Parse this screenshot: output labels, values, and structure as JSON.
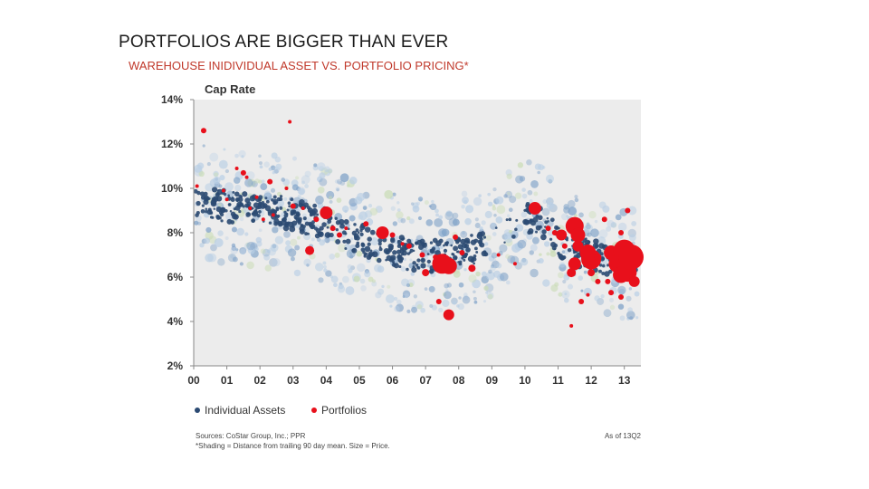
{
  "slide": {
    "title": "PORTFOLIOS ARE BIGGER THAN EVER",
    "subtitle": "WAREHOUSE INIDIVIDUAL ASSET VS. PORTFOLIO PRICING*"
  },
  "chart_data": {
    "type": "scatter",
    "title": "",
    "ylabel": "Cap Rate",
    "xlabel": "",
    "ylim": [
      2,
      14
    ],
    "xlim": [
      2000,
      2013.5
    ],
    "y_ticks": [
      "2%",
      "4%",
      "6%",
      "8%",
      "10%",
      "12%",
      "14%"
    ],
    "x_ticks": [
      "00",
      "01",
      "02",
      "03",
      "04",
      "05",
      "06",
      "07",
      "08",
      "09",
      "10",
      "11",
      "12",
      "13"
    ],
    "grid": false,
    "legend": "bottom-left",
    "colors": {
      "individual_assets": "#2b4a72",
      "portfolios": "#e8101b",
      "plot_background": "#ececec",
      "shading_light": "#b9cfe5",
      "shading_mid": "#7fa2c8",
      "shading_green": "#c9dcb5"
    },
    "series": [
      {
        "name": "Individual Assets",
        "color": "#2b4a72",
        "trend": [
          [
            2000.1,
            9.4
          ],
          [
            2000.5,
            9.3
          ],
          [
            2001.0,
            9.2
          ],
          [
            2001.5,
            9.1
          ],
          [
            2002.0,
            9.0
          ],
          [
            2002.5,
            9.0
          ],
          [
            2003.0,
            8.8
          ],
          [
            2003.5,
            8.6
          ],
          [
            2004.0,
            8.4
          ],
          [
            2004.5,
            8.0
          ],
          [
            2005.0,
            7.7
          ],
          [
            2005.5,
            7.4
          ],
          [
            2006.0,
            7.2
          ],
          [
            2006.5,
            7.0
          ],
          [
            2007.0,
            6.9
          ],
          [
            2007.5,
            7.0
          ],
          [
            2008.0,
            7.1
          ],
          [
            2008.5,
            7.3
          ],
          [
            2009.0,
            7.6
          ],
          [
            2009.5,
            8.3
          ],
          [
            2010.0,
            8.7
          ],
          [
            2010.5,
            8.5
          ],
          [
            2011.0,
            7.6
          ],
          [
            2011.5,
            7.2
          ],
          [
            2012.0,
            7.0
          ],
          [
            2012.5,
            6.8
          ],
          [
            2013.0,
            6.7
          ]
        ]
      },
      {
        "name": "Portfolios",
        "color": "#e8101b",
        "points": [
          [
            2000.3,
            12.6,
            3
          ],
          [
            2000.1,
            10.1,
            2
          ],
          [
            2000.9,
            9.9,
            2
          ],
          [
            2001.0,
            9.5,
            2
          ],
          [
            2001.3,
            10.9,
            2
          ],
          [
            2001.5,
            10.7,
            3
          ],
          [
            2001.6,
            10.5,
            2
          ],
          [
            2001.7,
            9.1,
            2
          ],
          [
            2001.9,
            9.6,
            2
          ],
          [
            2002.1,
            8.6,
            2
          ],
          [
            2002.3,
            10.3,
            3
          ],
          [
            2002.4,
            8.8,
            2
          ],
          [
            2002.8,
            10.0,
            2
          ],
          [
            2002.9,
            13.0,
            2
          ],
          [
            2003.0,
            9.2,
            3
          ],
          [
            2003.3,
            9.1,
            2
          ],
          [
            2003.5,
            7.2,
            5
          ],
          [
            2003.7,
            8.6,
            3
          ],
          [
            2004.0,
            8.9,
            7
          ],
          [
            2004.2,
            8.2,
            3
          ],
          [
            2004.4,
            7.9,
            3
          ],
          [
            2004.6,
            8.2,
            2
          ],
          [
            2005.2,
            8.4,
            3
          ],
          [
            2005.7,
            8.0,
            7
          ],
          [
            2006.0,
            7.9,
            3
          ],
          [
            2006.3,
            7.5,
            2
          ],
          [
            2006.5,
            7.4,
            3
          ],
          [
            2006.9,
            7.0,
            3
          ],
          [
            2007.0,
            6.2,
            4
          ],
          [
            2007.3,
            6.9,
            3
          ],
          [
            2007.5,
            6.6,
            11
          ],
          [
            2007.7,
            6.5,
            9
          ],
          [
            2007.4,
            4.9,
            3
          ],
          [
            2007.7,
            4.3,
            6
          ],
          [
            2007.9,
            7.8,
            3
          ],
          [
            2008.1,
            7.1,
            3
          ],
          [
            2008.4,
            6.4,
            4
          ],
          [
            2009.2,
            7.0,
            2
          ],
          [
            2009.7,
            6.6,
            2
          ],
          [
            2010.3,
            9.1,
            7
          ],
          [
            2010.7,
            8.2,
            3
          ],
          [
            2010.9,
            8.0,
            3
          ],
          [
            2011.1,
            7.9,
            6
          ],
          [
            2011.2,
            7.4,
            3
          ],
          [
            2011.5,
            8.3,
            10
          ],
          [
            2011.6,
            7.9,
            8
          ],
          [
            2011.6,
            7.4,
            6
          ],
          [
            2011.4,
            6.2,
            5
          ],
          [
            2011.5,
            6.6,
            7
          ],
          [
            2011.7,
            4.9,
            3
          ],
          [
            2011.4,
            3.8,
            2
          ],
          [
            2011.9,
            7.1,
            9
          ],
          [
            2012.0,
            6.8,
            11
          ],
          [
            2012.0,
            6.2,
            4
          ],
          [
            2012.2,
            6.9,
            4
          ],
          [
            2012.2,
            5.8,
            3
          ],
          [
            2011.9,
            5.2,
            2
          ],
          [
            2012.5,
            5.8,
            3
          ],
          [
            2012.6,
            5.3,
            3
          ],
          [
            2012.6,
            7.1,
            8
          ],
          [
            2012.8,
            6.6,
            10
          ],
          [
            2012.9,
            6.1,
            9
          ],
          [
            2013.0,
            7.2,
            12
          ],
          [
            2013.1,
            6.2,
            10
          ],
          [
            2013.2,
            6.9,
            14
          ],
          [
            2013.3,
            5.8,
            6
          ],
          [
            2012.9,
            8.0,
            3
          ],
          [
            2013.1,
            9.0,
            3
          ],
          [
            2012.9,
            5.1,
            3
          ],
          [
            2012.4,
            8.6,
            3
          ]
        ]
      }
    ],
    "annotation_shading": "*Shading = Distance from trailing 90 day mean. Size = Price.",
    "source": "Sources: CoStar Group, Inc.; PPR",
    "as_of": "As of 13Q2"
  }
}
